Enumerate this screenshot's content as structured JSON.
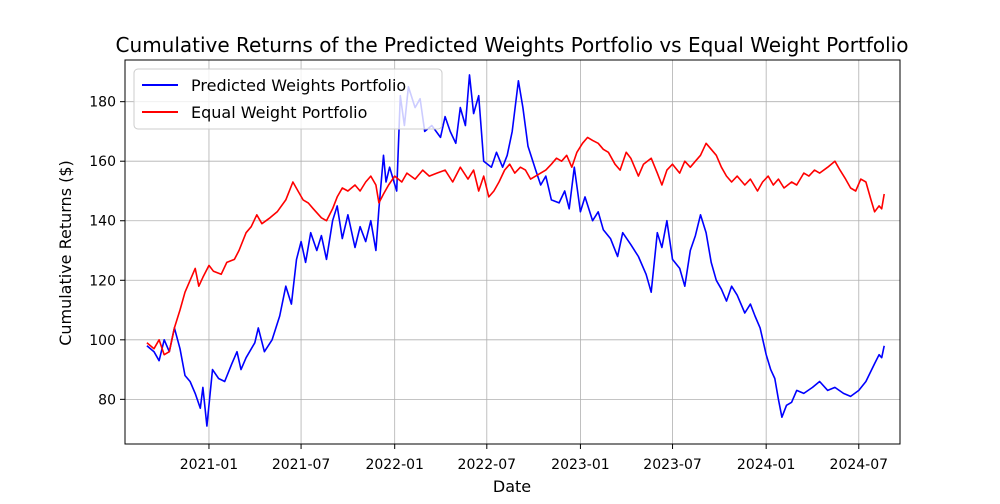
{
  "chart_data": {
    "type": "line",
    "title": "Cumulative Returns of the Predicted Weights Portfolio vs Equal Weight Portfolio",
    "xlabel": "Date",
    "ylabel": "Cumulative Returns ($)",
    "x_ticks": [
      "2021-01",
      "2021-07",
      "2022-01",
      "2022-07",
      "2023-01",
      "2023-07",
      "2024-01",
      "2024-07"
    ],
    "y_ticks": [
      80,
      100,
      120,
      140,
      160,
      180
    ],
    "xlim": [
      "2020-07-20",
      "2024-09-20"
    ],
    "ylim": [
      65,
      194
    ],
    "grid": true,
    "legend_position": "upper-left",
    "series": [
      {
        "name": "Predicted Weights Portfolio",
        "color": "#0000ff",
        "points": [
          [
            "2020-09-01",
            98
          ],
          [
            "2020-09-15",
            96
          ],
          [
            "2020-09-25",
            93
          ],
          [
            "2020-10-05",
            100
          ],
          [
            "2020-10-15",
            96
          ],
          [
            "2020-10-25",
            104
          ],
          [
            "2020-11-05",
            97
          ],
          [
            "2020-11-15",
            88
          ],
          [
            "2020-11-25",
            86
          ],
          [
            "2020-12-05",
            82
          ],
          [
            "2020-12-15",
            77
          ],
          [
            "2020-12-20",
            84
          ],
          [
            "2020-12-28",
            71
          ],
          [
            "2021-01-08",
            90
          ],
          [
            "2021-01-20",
            87
          ],
          [
            "2021-02-01",
            86
          ],
          [
            "2021-02-15",
            92
          ],
          [
            "2021-02-25",
            96
          ],
          [
            "2021-03-05",
            90
          ],
          [
            "2021-03-15",
            94
          ],
          [
            "2021-04-01",
            99
          ],
          [
            "2021-04-08",
            104
          ],
          [
            "2021-04-20",
            96
          ],
          [
            "2021-05-05",
            100
          ],
          [
            "2021-05-20",
            108
          ],
          [
            "2021-06-01",
            118
          ],
          [
            "2021-06-12",
            112
          ],
          [
            "2021-06-22",
            127
          ],
          [
            "2021-07-01",
            133
          ],
          [
            "2021-07-10",
            126
          ],
          [
            "2021-07-20",
            136
          ],
          [
            "2021-08-01",
            130
          ],
          [
            "2021-08-10",
            135
          ],
          [
            "2021-08-20",
            127
          ],
          [
            "2021-09-01",
            140
          ],
          [
            "2021-09-10",
            145
          ],
          [
            "2021-09-20",
            134
          ],
          [
            "2021-10-01",
            142
          ],
          [
            "2021-10-15",
            131
          ],
          [
            "2021-10-25",
            138
          ],
          [
            "2021-11-05",
            133
          ],
          [
            "2021-11-15",
            140
          ],
          [
            "2021-11-25",
            130
          ],
          [
            "2021-12-01",
            144
          ],
          [
            "2021-12-10",
            162
          ],
          [
            "2021-12-15",
            153
          ],
          [
            "2021-12-22",
            158
          ],
          [
            "2022-01-05",
            150
          ],
          [
            "2022-01-12",
            182
          ],
          [
            "2022-01-20",
            172
          ],
          [
            "2022-01-28",
            185
          ],
          [
            "2022-02-10",
            178
          ],
          [
            "2022-02-20",
            181
          ],
          [
            "2022-03-01",
            170
          ],
          [
            "2022-03-15",
            172
          ],
          [
            "2022-04-01",
            168
          ],
          [
            "2022-04-10",
            175
          ],
          [
            "2022-04-20",
            170
          ],
          [
            "2022-05-01",
            166
          ],
          [
            "2022-05-10",
            178
          ],
          [
            "2022-05-20",
            172
          ],
          [
            "2022-05-28",
            189
          ],
          [
            "2022-06-05",
            176
          ],
          [
            "2022-06-15",
            182
          ],
          [
            "2022-06-25",
            160
          ],
          [
            "2022-07-10",
            158
          ],
          [
            "2022-07-20",
            163
          ],
          [
            "2022-08-01",
            158
          ],
          [
            "2022-08-10",
            162
          ],
          [
            "2022-08-20",
            170
          ],
          [
            "2022-09-01",
            187
          ],
          [
            "2022-09-10",
            178
          ],
          [
            "2022-09-20",
            165
          ],
          [
            "2022-10-05",
            157
          ],
          [
            "2022-10-15",
            152
          ],
          [
            "2022-10-25",
            155
          ],
          [
            "2022-11-05",
            147
          ],
          [
            "2022-11-20",
            146
          ],
          [
            "2022-12-01",
            150
          ],
          [
            "2022-12-10",
            144
          ],
          [
            "2022-12-20",
            158
          ],
          [
            "2023-01-01",
            143
          ],
          [
            "2023-01-10",
            148
          ],
          [
            "2023-01-25",
            140
          ],
          [
            "2023-02-05",
            143
          ],
          [
            "2023-02-15",
            137
          ],
          [
            "2023-03-01",
            134
          ],
          [
            "2023-03-15",
            128
          ],
          [
            "2023-03-25",
            136
          ],
          [
            "2023-04-10",
            132
          ],
          [
            "2023-04-25",
            128
          ],
          [
            "2023-05-10",
            122
          ],
          [
            "2023-05-20",
            116
          ],
          [
            "2023-06-01",
            136
          ],
          [
            "2023-06-10",
            131
          ],
          [
            "2023-06-20",
            140
          ],
          [
            "2023-07-01",
            127
          ],
          [
            "2023-07-15",
            124
          ],
          [
            "2023-07-25",
            118
          ],
          [
            "2023-08-05",
            130
          ],
          [
            "2023-08-15",
            135
          ],
          [
            "2023-08-25",
            142
          ],
          [
            "2023-09-05",
            136
          ],
          [
            "2023-09-15",
            126
          ],
          [
            "2023-09-25",
            120
          ],
          [
            "2023-10-05",
            117
          ],
          [
            "2023-10-15",
            113
          ],
          [
            "2023-10-25",
            118
          ],
          [
            "2023-11-05",
            115
          ],
          [
            "2023-11-20",
            109
          ],
          [
            "2023-12-01",
            112
          ],
          [
            "2023-12-10",
            108
          ],
          [
            "2023-12-20",
            104
          ],
          [
            "2024-01-01",
            95
          ],
          [
            "2024-01-10",
            90
          ],
          [
            "2024-01-18",
            87
          ],
          [
            "2024-01-25",
            80
          ],
          [
            "2024-02-01",
            74
          ],
          [
            "2024-02-10",
            78
          ],
          [
            "2024-02-20",
            79
          ],
          [
            "2024-03-01",
            83
          ],
          [
            "2024-03-15",
            82
          ],
          [
            "2024-04-01",
            84
          ],
          [
            "2024-04-15",
            86
          ],
          [
            "2024-05-01",
            83
          ],
          [
            "2024-05-15",
            84
          ],
          [
            "2024-06-01",
            82
          ],
          [
            "2024-06-15",
            81
          ],
          [
            "2024-07-01",
            83
          ],
          [
            "2024-07-15",
            86
          ],
          [
            "2024-08-01",
            92
          ],
          [
            "2024-08-10",
            95
          ],
          [
            "2024-08-15",
            94
          ],
          [
            "2024-08-20",
            98
          ]
        ]
      },
      {
        "name": "Equal Weight Portfolio",
        "color": "#ff0000",
        "points": [
          [
            "2020-09-01",
            99
          ],
          [
            "2020-09-15",
            97
          ],
          [
            "2020-09-25",
            100
          ],
          [
            "2020-10-05",
            95
          ],
          [
            "2020-10-15",
            96
          ],
          [
            "2020-10-25",
            104
          ],
          [
            "2020-11-05",
            110
          ],
          [
            "2020-11-15",
            116
          ],
          [
            "2020-11-25",
            120
          ],
          [
            "2020-12-05",
            124
          ],
          [
            "2020-12-12",
            118
          ],
          [
            "2020-12-20",
            121
          ],
          [
            "2021-01-01",
            125
          ],
          [
            "2021-01-10",
            123
          ],
          [
            "2021-01-25",
            122
          ],
          [
            "2021-02-05",
            126
          ],
          [
            "2021-02-20",
            127
          ],
          [
            "2021-03-01",
            130
          ],
          [
            "2021-03-15",
            136
          ],
          [
            "2021-03-25",
            138
          ],
          [
            "2021-04-05",
            142
          ],
          [
            "2021-04-15",
            139
          ],
          [
            "2021-05-01",
            141
          ],
          [
            "2021-05-15",
            143
          ],
          [
            "2021-06-01",
            147
          ],
          [
            "2021-06-15",
            153
          ],
          [
            "2021-06-25",
            150
          ],
          [
            "2021-07-05",
            147
          ],
          [
            "2021-07-15",
            146
          ],
          [
            "2021-07-25",
            144
          ],
          [
            "2021-08-10",
            141
          ],
          [
            "2021-08-20",
            140
          ],
          [
            "2021-09-01",
            144
          ],
          [
            "2021-09-10",
            148
          ],
          [
            "2021-09-20",
            151
          ],
          [
            "2021-10-01",
            150
          ],
          [
            "2021-10-15",
            152
          ],
          [
            "2021-10-25",
            150
          ],
          [
            "2021-11-05",
            153
          ],
          [
            "2021-11-15",
            155
          ],
          [
            "2021-11-25",
            152
          ],
          [
            "2021-12-01",
            146
          ],
          [
            "2021-12-10",
            149
          ],
          [
            "2021-12-20",
            152
          ],
          [
            "2022-01-01",
            155
          ],
          [
            "2022-01-15",
            153
          ],
          [
            "2022-01-25",
            156
          ],
          [
            "2022-02-10",
            154
          ],
          [
            "2022-02-25",
            157
          ],
          [
            "2022-03-10",
            155
          ],
          [
            "2022-03-25",
            156
          ],
          [
            "2022-04-10",
            157
          ],
          [
            "2022-04-25",
            153
          ],
          [
            "2022-05-10",
            158
          ],
          [
            "2022-05-25",
            154
          ],
          [
            "2022-06-05",
            157
          ],
          [
            "2022-06-15",
            150
          ],
          [
            "2022-06-25",
            155
          ],
          [
            "2022-07-05",
            148
          ],
          [
            "2022-07-15",
            150
          ],
          [
            "2022-07-25",
            153
          ],
          [
            "2022-08-05",
            157
          ],
          [
            "2022-08-15",
            159
          ],
          [
            "2022-08-25",
            156
          ],
          [
            "2022-09-05",
            158
          ],
          [
            "2022-09-15",
            157
          ],
          [
            "2022-09-25",
            154
          ],
          [
            "2022-10-05",
            155
          ],
          [
            "2022-10-15",
            156
          ],
          [
            "2022-10-25",
            157
          ],
          [
            "2022-11-05",
            159
          ],
          [
            "2022-11-15",
            161
          ],
          [
            "2022-11-25",
            160
          ],
          [
            "2022-12-05",
            162
          ],
          [
            "2022-12-15",
            158
          ],
          [
            "2022-12-25",
            163
          ],
          [
            "2023-01-05",
            166
          ],
          [
            "2023-01-15",
            168
          ],
          [
            "2023-01-25",
            167
          ],
          [
            "2023-02-05",
            166
          ],
          [
            "2023-02-15",
            164
          ],
          [
            "2023-02-25",
            163
          ],
          [
            "2023-03-10",
            159
          ],
          [
            "2023-03-20",
            157
          ],
          [
            "2023-04-01",
            163
          ],
          [
            "2023-04-10",
            161
          ],
          [
            "2023-04-25",
            155
          ],
          [
            "2023-05-05",
            159
          ],
          [
            "2023-05-20",
            161
          ],
          [
            "2023-06-01",
            156
          ],
          [
            "2023-06-10",
            152
          ],
          [
            "2023-06-20",
            157
          ],
          [
            "2023-07-01",
            159
          ],
          [
            "2023-07-15",
            156
          ],
          [
            "2023-07-25",
            160
          ],
          [
            "2023-08-05",
            158
          ],
          [
            "2023-08-15",
            160
          ],
          [
            "2023-08-25",
            162
          ],
          [
            "2023-09-05",
            166
          ],
          [
            "2023-09-15",
            164
          ],
          [
            "2023-09-25",
            162
          ],
          [
            "2023-10-05",
            158
          ],
          [
            "2023-10-15",
            155
          ],
          [
            "2023-10-25",
            153
          ],
          [
            "2023-11-05",
            155
          ],
          [
            "2023-11-20",
            152
          ],
          [
            "2023-12-01",
            154
          ],
          [
            "2023-12-15",
            150
          ],
          [
            "2023-12-25",
            153
          ],
          [
            "2024-01-05",
            155
          ],
          [
            "2024-01-15",
            152
          ],
          [
            "2024-01-25",
            154
          ],
          [
            "2024-02-05",
            151
          ],
          [
            "2024-02-20",
            153
          ],
          [
            "2024-03-01",
            152
          ],
          [
            "2024-03-15",
            156
          ],
          [
            "2024-03-25",
            155
          ],
          [
            "2024-04-05",
            157
          ],
          [
            "2024-04-15",
            156
          ],
          [
            "2024-05-01",
            158
          ],
          [
            "2024-05-15",
            160
          ],
          [
            "2024-05-25",
            157
          ],
          [
            "2024-06-05",
            154
          ],
          [
            "2024-06-15",
            151
          ],
          [
            "2024-06-25",
            150
          ],
          [
            "2024-07-05",
            154
          ],
          [
            "2024-07-15",
            153
          ],
          [
            "2024-07-25",
            147
          ],
          [
            "2024-08-01",
            143
          ],
          [
            "2024-08-10",
            145
          ],
          [
            "2024-08-15",
            144
          ],
          [
            "2024-08-20",
            149
          ]
        ]
      }
    ]
  }
}
